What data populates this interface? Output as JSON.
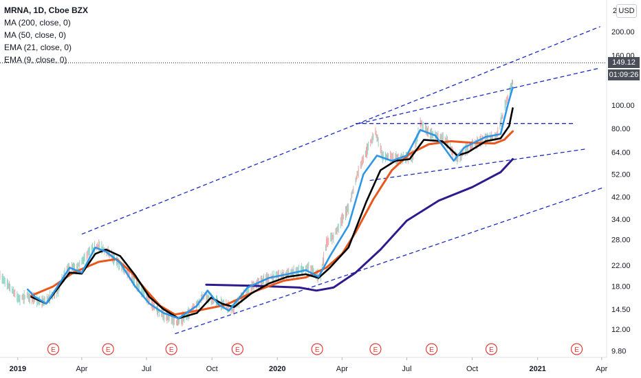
{
  "legend": {
    "symbol": "MRNA, 1D, Cboe BZX",
    "studies": [
      "MA (200, close, 0)",
      "MA (50, close, 0)",
      "EMA (21, close, 0)",
      "EMA (9, close, 0)"
    ]
  },
  "currency_label": "USD",
  "last_price_label": "149.12",
  "countdown_label": "01:09:26",
  "earnings_marker_label": "E",
  "colors": {
    "ma200": "#2e1a8c",
    "ma50": "#e8571c",
    "ema21": "#000000",
    "ema9": "#2f96e6",
    "trendline": "#1a2bc2",
    "candle_up": "#8fd3c3",
    "candle_down": "#f2a3a3",
    "earnings": "#e53935",
    "price_line": "#131722"
  },
  "chart_data": {
    "type": "line",
    "x_axis": {
      "range": [
        "2018-12-07",
        "2021-04-08"
      ],
      "ticks": [
        {
          "date": "2019-01-01",
          "label": "2019",
          "bold": true
        },
        {
          "date": "2019-04-01",
          "label": "Apr"
        },
        {
          "date": "2019-07-01",
          "label": "Jul"
        },
        {
          "date": "2019-10-01",
          "label": "Oct"
        },
        {
          "date": "2020-01-01",
          "label": "2020",
          "bold": true
        },
        {
          "date": "2020-04-01",
          "label": "Apr"
        },
        {
          "date": "2020-07-01",
          "label": "Jul"
        },
        {
          "date": "2020-10-01",
          "label": "Oct"
        },
        {
          "date": "2021-01-01",
          "label": "2021",
          "bold": true
        },
        {
          "date": "2021-04-01",
          "label": "Apr"
        }
      ]
    },
    "y_axis": {
      "scale": "log",
      "range": [
        9.2,
        270
      ],
      "ticks": [
        {
          "value": 200,
          "label": "200.00"
        },
        {
          "value": 160,
          "label": "160.00"
        },
        {
          "value": 100,
          "label": "100.00"
        },
        {
          "value": 80,
          "label": "80.00"
        },
        {
          "value": 64,
          "label": "64.00"
        },
        {
          "value": 52,
          "label": "52.00"
        },
        {
          "value": 42,
          "label": "42.00"
        },
        {
          "value": 34,
          "label": "34.00"
        },
        {
          "value": 28,
          "label": "28.00"
        },
        {
          "value": 22,
          "label": "22.00"
        },
        {
          "value": 18,
          "label": "18.00"
        },
        {
          "value": 14.5,
          "label": "14.50"
        },
        {
          "value": 12,
          "label": "12.00"
        },
        {
          "value": 9.8,
          "label": "9.80"
        }
      ],
      "edge_label": {
        "value": 245,
        "label": "2"
      }
    },
    "last_price": 149.12,
    "series": [
      {
        "key": "ma200",
        "points": [
          [
            "2019-09-23",
            18.3
          ],
          [
            "2019-12-01",
            18.1
          ],
          [
            "2020-02-01",
            17.8
          ],
          [
            "2020-02-25",
            17.3
          ],
          [
            "2020-03-20",
            17.8
          ],
          [
            "2020-04-20",
            20.5
          ],
          [
            "2020-05-25",
            25.5
          ],
          [
            "2020-07-01",
            33.5
          ],
          [
            "2020-08-15",
            40.5
          ],
          [
            "2020-10-01",
            46
          ],
          [
            "2020-11-10",
            53
          ],
          [
            "2020-11-27",
            60
          ]
        ]
      },
      {
        "key": "ma50",
        "points": [
          [
            "2019-01-20",
            16.5
          ],
          [
            "2019-02-20",
            18
          ],
          [
            "2019-03-20",
            20.5
          ],
          [
            "2019-04-25",
            22.7
          ],
          [
            "2019-05-20",
            23.3
          ],
          [
            "2019-06-10",
            20.5
          ],
          [
            "2019-07-01",
            17.3
          ],
          [
            "2019-07-20",
            15
          ],
          [
            "2019-08-10",
            13.8
          ],
          [
            "2019-09-10",
            14.3
          ],
          [
            "2019-10-20",
            15.1
          ],
          [
            "2019-12-01",
            17.2
          ],
          [
            "2020-01-10",
            19
          ],
          [
            "2020-02-10",
            19.6
          ],
          [
            "2020-03-10",
            21.5
          ],
          [
            "2020-04-01",
            24.5
          ],
          [
            "2020-04-20",
            30
          ],
          [
            "2020-05-15",
            41
          ],
          [
            "2020-06-10",
            54
          ],
          [
            "2020-07-05",
            63
          ],
          [
            "2020-08-01",
            69
          ],
          [
            "2020-09-01",
            71
          ],
          [
            "2020-10-01",
            70
          ],
          [
            "2020-11-01",
            69.5
          ],
          [
            "2020-11-15",
            72
          ],
          [
            "2020-11-27",
            78
          ]
        ]
      },
      {
        "key": "ema21",
        "points": [
          [
            "2019-01-20",
            16.3
          ],
          [
            "2019-02-10",
            15.3
          ],
          [
            "2019-02-25",
            17.5
          ],
          [
            "2019-03-15",
            20.5
          ],
          [
            "2019-04-01",
            20.3
          ],
          [
            "2019-04-20",
            24.5
          ],
          [
            "2019-05-05",
            25.5
          ],
          [
            "2019-05-25",
            24
          ],
          [
            "2019-06-15",
            20
          ],
          [
            "2019-07-05",
            16.3
          ],
          [
            "2019-07-25",
            14.5
          ],
          [
            "2019-08-15",
            13.3
          ],
          [
            "2019-09-10",
            14
          ],
          [
            "2019-09-30",
            16.2
          ],
          [
            "2019-10-15",
            15.3
          ],
          [
            "2019-11-01",
            14.8
          ],
          [
            "2019-11-25",
            16.8
          ],
          [
            "2019-12-20",
            18.5
          ],
          [
            "2020-01-15",
            19.7
          ],
          [
            "2020-02-10",
            20.2
          ],
          [
            "2020-02-28",
            19.5
          ],
          [
            "2020-03-15",
            21.5
          ],
          [
            "2020-04-10",
            26
          ],
          [
            "2020-05-05",
            40
          ],
          [
            "2020-05-25",
            54
          ],
          [
            "2020-06-15",
            59
          ],
          [
            "2020-07-05",
            60
          ],
          [
            "2020-07-25",
            72
          ],
          [
            "2020-08-20",
            71
          ],
          [
            "2020-09-10",
            62
          ],
          [
            "2020-09-25",
            64
          ],
          [
            "2020-10-20",
            71
          ],
          [
            "2020-11-10",
            73
          ],
          [
            "2020-11-22",
            82
          ],
          [
            "2020-11-27",
            97
          ]
        ]
      },
      {
        "key": "ema9",
        "points": [
          [
            "2019-01-15",
            17.5
          ],
          [
            "2019-01-25",
            16.3
          ],
          [
            "2019-02-10",
            15.3
          ],
          [
            "2019-02-25",
            17.8
          ],
          [
            "2019-03-15",
            21.5
          ],
          [
            "2019-04-01",
            20.5
          ],
          [
            "2019-04-20",
            26
          ],
          [
            "2019-05-05",
            25
          ],
          [
            "2019-05-25",
            22.5
          ],
          [
            "2019-06-15",
            18
          ],
          [
            "2019-07-05",
            15.3
          ],
          [
            "2019-07-25",
            14
          ],
          [
            "2019-08-15",
            13.3
          ],
          [
            "2019-09-10",
            15
          ],
          [
            "2019-09-25",
            17.3
          ],
          [
            "2019-10-10",
            15.2
          ],
          [
            "2019-10-25",
            14.3
          ],
          [
            "2019-11-20",
            17.8
          ],
          [
            "2019-12-20",
            19.5
          ],
          [
            "2020-01-15",
            20.2
          ],
          [
            "2020-02-10",
            21
          ],
          [
            "2020-02-28",
            19.7
          ],
          [
            "2020-03-15",
            24
          ],
          [
            "2020-04-10",
            32
          ],
          [
            "2020-05-01",
            52
          ],
          [
            "2020-05-20",
            62
          ],
          [
            "2020-06-10",
            59
          ],
          [
            "2020-07-01",
            62
          ],
          [
            "2020-07-20",
            79
          ],
          [
            "2020-08-10",
            75
          ],
          [
            "2020-09-05",
            59
          ],
          [
            "2020-09-20",
            67
          ],
          [
            "2020-10-20",
            74
          ],
          [
            "2020-11-10",
            76
          ],
          [
            "2020-11-20",
            100
          ],
          [
            "2020-11-27",
            118
          ]
        ]
      }
    ],
    "trendlines": [
      {
        "from": [
          "2019-04-01",
          29.5
        ],
        "to": [
          "2021-03-30",
          210
        ]
      },
      {
        "from": [
          "2020-04-25",
          84
        ],
        "to": [
          "2021-03-30",
          142
        ]
      },
      {
        "from": [
          "2020-04-20",
          84
        ],
        "to": [
          "2021-02-20",
          84
        ]
      },
      {
        "from": [
          "2020-05-10",
          49
        ],
        "to": [
          "2021-03-10",
          66
        ]
      },
      {
        "from": [
          "2019-08-10",
          11.5
        ],
        "to": [
          "2021-04-05",
          46
        ]
      }
    ],
    "earnings_dates": [
      "2019-02-20",
      "2019-05-08",
      "2019-08-05",
      "2019-11-06",
      "2020-02-26",
      "2020-05-18",
      "2020-08-05",
      "2020-10-28",
      "2021-02-25"
    ],
    "price_path": [
      [
        "2018-12-07",
        20
      ],
      [
        "2018-12-20",
        18
      ],
      [
        "2019-01-02",
        16
      ],
      [
        "2019-01-15",
        16.5
      ],
      [
        "2019-02-05",
        15.5
      ],
      [
        "2019-02-25",
        17
      ],
      [
        "2019-03-10",
        21
      ],
      [
        "2019-03-25",
        21.5
      ],
      [
        "2019-04-12",
        25
      ],
      [
        "2019-04-25",
        26.5
      ],
      [
        "2019-05-10",
        24.5
      ],
      [
        "2019-06-01",
        21
      ],
      [
        "2019-06-25",
        17
      ],
      [
        "2019-07-20",
        14
      ],
      [
        "2019-08-10",
        12.8
      ],
      [
        "2019-08-25",
        13.5
      ],
      [
        "2019-09-20",
        16.5
      ],
      [
        "2019-10-10",
        15.5
      ],
      [
        "2019-10-30",
        14.5
      ],
      [
        "2019-11-25",
        18
      ],
      [
        "2019-12-20",
        19.5
      ],
      [
        "2020-01-20",
        20.5
      ],
      [
        "2020-02-15",
        21.5
      ],
      [
        "2020-03-01",
        19.5
      ],
      [
        "2020-03-10",
        27
      ],
      [
        "2020-03-20",
        29
      ],
      [
        "2020-04-10",
        38
      ],
      [
        "2020-04-25",
        55
      ],
      [
        "2020-05-18",
        78
      ],
      [
        "2020-05-28",
        62
      ],
      [
        "2020-06-20",
        60
      ],
      [
        "2020-07-10",
        62
      ],
      [
        "2020-07-20",
        84
      ],
      [
        "2020-08-05",
        76
      ],
      [
        "2020-08-25",
        72
      ],
      [
        "2020-09-10",
        60
      ],
      [
        "2020-09-25",
        67
      ],
      [
        "2020-10-15",
        72
      ],
      [
        "2020-11-05",
        75
      ],
      [
        "2020-11-15",
        96
      ],
      [
        "2020-11-27",
        125
      ]
    ]
  }
}
